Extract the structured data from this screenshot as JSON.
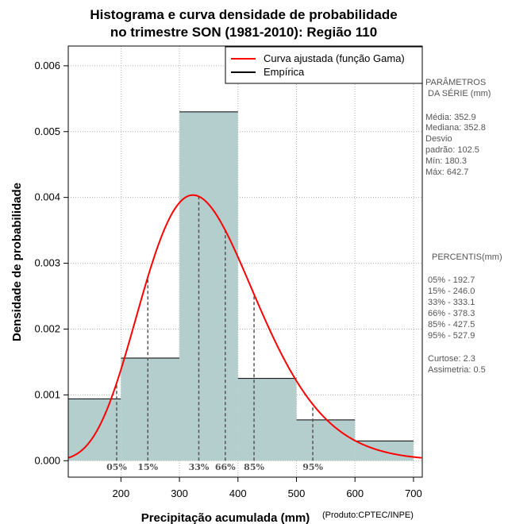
{
  "title_line1": "Histograma e curva densidade de probabilidade",
  "title_line2": "no trimestre SON (1981-2010): Região 110",
  "credit": "(Produto:CPTEC/INPE)",
  "legend": [
    {
      "label": "Curva ajustada (função Gama)",
      "color": "#ff0000"
    },
    {
      "label": "Empírica",
      "color": "#000000"
    }
  ],
  "params": {
    "title_line1": "PARÂMETROS",
    "title_line2": "DA SÉRIE (mm)",
    "lines": [
      "Média:  352.9",
      "Mediana:  352.8",
      "Desvio",
      "padrão:  102.5",
      "Mín:  180.3",
      "Máx:  642.7"
    ]
  },
  "percentis": {
    "title": "PERCENTIS(mm)",
    "lines": [
      "05% -  192.7",
      "15% -  246.0",
      "33% -  333.1",
      "66% -  378.3",
      "85% -  427.5",
      "95% -  527.9"
    ],
    "stats": [
      "Curtose:  2.3",
      "Assimetria:  0.5"
    ]
  },
  "chart_data": {
    "type": "bar",
    "title": "Histograma e curva densidade de probabilidade no trimestre SON (1981-2010): Região 110",
    "xlabel": "Precipitação acumulada (mm)",
    "ylabel": "Densidade de probabilidade",
    "xlim": [
      110,
      715
    ],
    "ylim": [
      -0.00025,
      0.0063
    ],
    "x_ticks": [
      200,
      300,
      400,
      500,
      600,
      700
    ],
    "y_ticks": [
      0.0,
      0.001,
      0.002,
      0.003,
      0.004,
      0.005,
      0.006
    ],
    "y_tick_labels": [
      "0.000",
      "0.001",
      "0.002",
      "0.003",
      "0.004",
      "0.005",
      "0.006"
    ],
    "grid": true,
    "bin_width": 100,
    "bars": [
      {
        "x0": 100,
        "x1": 200,
        "density": 0.00094
      },
      {
        "x0": 200,
        "x1": 300,
        "density": 0.00156
      },
      {
        "x0": 300,
        "x1": 400,
        "density": 0.0053
      },
      {
        "x0": 400,
        "x1": 500,
        "density": 0.00125
      },
      {
        "x0": 500,
        "x1": 600,
        "density": 0.00062
      },
      {
        "x0": 600,
        "x1": 700,
        "density": 0.0003
      }
    ],
    "fitted_curve": {
      "name": "Curva ajustada (função Gama)",
      "distribution": "gamma",
      "shape": 11.85,
      "scale": 29.78
    },
    "percentiles": [
      {
        "label": "05%",
        "value": 192.7
      },
      {
        "label": "15%",
        "value": 246.0
      },
      {
        "label": "33%",
        "value": 333.1
      },
      {
        "label": "66%",
        "value": 378.3
      },
      {
        "label": "85%",
        "value": 427.5
      },
      {
        "label": "95%",
        "value": 527.9
      }
    ],
    "colors": {
      "bar_fill": "#b4cdcd",
      "curve": "#ff0000",
      "percentile_line": "#555555"
    },
    "legend_position": "top-right"
  }
}
